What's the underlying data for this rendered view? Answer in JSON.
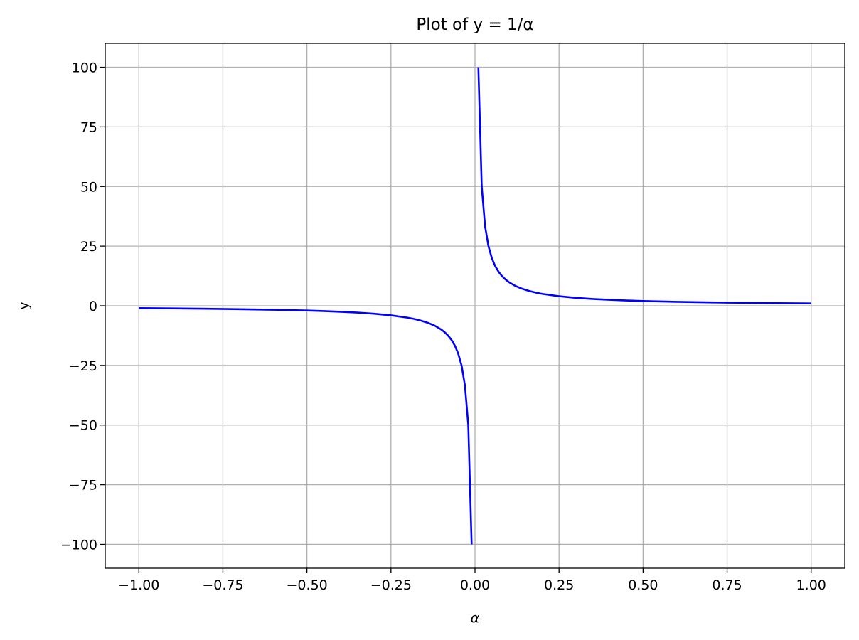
{
  "chart_data": {
    "type": "line",
    "title": "Plot of y = 1/α",
    "xlabel": "α",
    "ylabel": "y",
    "x": [
      -1,
      -0.9,
      -0.8,
      -0.7,
      -0.6,
      -0.5,
      -0.45,
      -0.4,
      -0.35,
      -0.3,
      -0.25,
      -0.2,
      -0.18,
      -0.16,
      -0.14,
      -0.12,
      -0.1,
      -0.09,
      -0.08,
      -0.07,
      -0.06,
      -0.05,
      -0.04,
      -0.03,
      -0.02,
      -0.01,
      0,
      0.01,
      0.02,
      0.03,
      0.04,
      0.05,
      0.06,
      0.07,
      0.08,
      0.09,
      0.1,
      0.12,
      0.14,
      0.16,
      0.18,
      0.2,
      0.25,
      0.3,
      0.35,
      0.4,
      0.45,
      0.5,
      0.6,
      0.7,
      0.8,
      0.9,
      1
    ],
    "series": [
      {
        "color": "#0000ff",
        "values": [
          -1,
          -1.11,
          -1.25,
          -1.43,
          -1.67,
          -2,
          -2.22,
          -2.5,
          -2.86,
          -3.33,
          -4,
          -5,
          -5.56,
          -6.25,
          -7.14,
          -8.33,
          -10,
          -11.11,
          -12.5,
          -14.29,
          -16.67,
          -20,
          -25,
          -33.33,
          -50,
          -100,
          null,
          100,
          50,
          33.33,
          25,
          20,
          16.67,
          14.29,
          12.5,
          11.11,
          10,
          8.33,
          7.14,
          6.25,
          5.56,
          5,
          4,
          3.33,
          2.86,
          2.5,
          2.22,
          2,
          1.67,
          1.43,
          1.25,
          1.11,
          1
        ]
      }
    ],
    "xlim": [
      -1.1,
      1.1
    ],
    "ylim": [
      -110,
      110
    ],
    "xticks": [
      {
        "value": -1,
        "label": "−1.00"
      },
      {
        "value": -0.75,
        "label": "−0.75"
      },
      {
        "value": -0.5,
        "label": "−0.50"
      },
      {
        "value": -0.25,
        "label": "−0.25"
      },
      {
        "value": 0,
        "label": "0.00"
      },
      {
        "value": 0.25,
        "label": "0.25"
      },
      {
        "value": 0.5,
        "label": "0.50"
      },
      {
        "value": 0.75,
        "label": "0.75"
      },
      {
        "value": 1,
        "label": "1.00"
      }
    ],
    "yticks": [
      {
        "value": -100,
        "label": "−100"
      },
      {
        "value": -75,
        "label": "−75"
      },
      {
        "value": -50,
        "label": "−50"
      },
      {
        "value": -25,
        "label": "−25"
      },
      0,
      25,
      50,
      75,
      100
    ],
    "grid": true
  }
}
